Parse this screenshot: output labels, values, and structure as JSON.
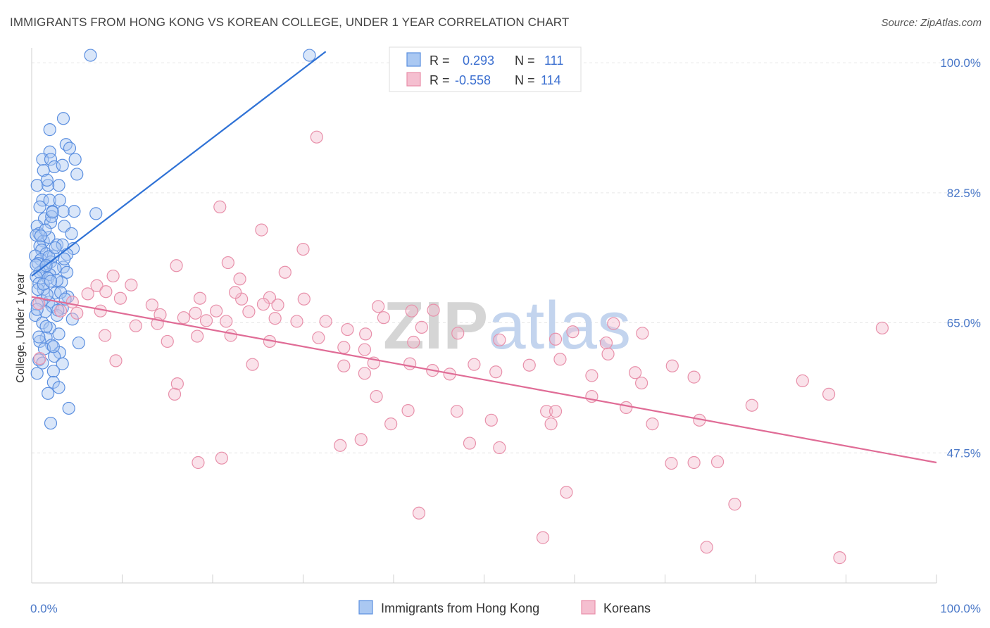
{
  "title": "IMMIGRANTS FROM HONG KONG VS KOREAN COLLEGE, UNDER 1 YEAR CORRELATION CHART",
  "source": "Source: ZipAtlas.com",
  "watermark": {
    "zip": "ZIP",
    "atlas": "atlas"
  },
  "chart_data": {
    "type": "scatter",
    "xlabel": "",
    "ylabel": "College, Under 1 year",
    "xlim": [
      0,
      100
    ],
    "ylim": [
      30,
      102
    ],
    "x_tick_labels": [
      {
        "value": 0,
        "label": "0.0%"
      },
      {
        "value": 100,
        "label": "100.0%"
      }
    ],
    "y_ticks": [
      {
        "value": 47.5,
        "label": "47.5%"
      },
      {
        "value": 65.0,
        "label": "65.0%"
      },
      {
        "value": 82.5,
        "label": "82.5%"
      },
      {
        "value": 100.0,
        "label": "100.0%"
      }
    ],
    "grid": true,
    "legend_position": "top-center",
    "series": [
      {
        "name": "Immigrants from Hong Kong",
        "color": "#5b8fe0",
        "fill": "#aac8f2",
        "line_color": "#2f72d6",
        "r_label": "R =",
        "r_value": "0.293",
        "n_label": "N =",
        "n_value": "111",
        "trend": {
          "x0": 0,
          "y0": 71.3,
          "x1": 32.5,
          "y1": 101.5
        },
        "points": [
          [
            6.5,
            101
          ],
          [
            30.7,
            101
          ],
          [
            3.5,
            92.5
          ],
          [
            2,
            91
          ],
          [
            3.8,
            89
          ],
          [
            2,
            88
          ],
          [
            4.2,
            88.5
          ],
          [
            1.2,
            87
          ],
          [
            2.1,
            87
          ],
          [
            4.8,
            87
          ],
          [
            2.5,
            86
          ],
          [
            1.3,
            85.5
          ],
          [
            5,
            85
          ],
          [
            0.6,
            83.5
          ],
          [
            1.8,
            83.5
          ],
          [
            3,
            83.5
          ],
          [
            1.2,
            81.5
          ],
          [
            2,
            81.5
          ],
          [
            3.1,
            81.5
          ],
          [
            2.3,
            80
          ],
          [
            3.5,
            80
          ],
          [
            4.7,
            80
          ],
          [
            7.1,
            79.7
          ],
          [
            1.4,
            79
          ],
          [
            2.1,
            78.5
          ],
          [
            0.6,
            78
          ],
          [
            3.6,
            78
          ],
          [
            0.8,
            77
          ],
          [
            4.4,
            77
          ],
          [
            0.5,
            76.8
          ],
          [
            1.3,
            76
          ],
          [
            1.9,
            76.5
          ],
          [
            2.8,
            75.5
          ],
          [
            0.9,
            75.3
          ],
          [
            3.4,
            75.5
          ],
          [
            4.6,
            75
          ],
          [
            1.1,
            74.8
          ],
          [
            1.6,
            74.3
          ],
          [
            2.4,
            74
          ],
          [
            3.9,
            74.2
          ],
          [
            0.4,
            74
          ],
          [
            1,
            73.5
          ],
          [
            2.1,
            73.2
          ],
          [
            0.7,
            73
          ],
          [
            1.5,
            72.5
          ],
          [
            3.5,
            72.5
          ],
          [
            2.6,
            72.3
          ],
          [
            1.2,
            72
          ],
          [
            0.9,
            71.8
          ],
          [
            2,
            71.5
          ],
          [
            0.5,
            71.2
          ],
          [
            1.8,
            71
          ],
          [
            3.3,
            70.5
          ],
          [
            0.8,
            70.3
          ],
          [
            1.3,
            69.5
          ],
          [
            2.6,
            69
          ],
          [
            4,
            68.5
          ],
          [
            1.1,
            68
          ],
          [
            1.9,
            67.8
          ],
          [
            0.6,
            67.5
          ],
          [
            2.3,
            67.2
          ],
          [
            3.4,
            67
          ],
          [
            1.5,
            66.5
          ],
          [
            0.4,
            66
          ],
          [
            2.8,
            66
          ],
          [
            4.5,
            65.5
          ],
          [
            1.2,
            65
          ],
          [
            2,
            64.3
          ],
          [
            3,
            63.5
          ],
          [
            1.6,
            63
          ],
          [
            0.9,
            62.5
          ],
          [
            2.2,
            62
          ],
          [
            5.2,
            62.3
          ],
          [
            1.4,
            61.5
          ],
          [
            3.1,
            61
          ],
          [
            2.5,
            60.5
          ],
          [
            0.8,
            60
          ],
          [
            3.4,
            59.5
          ],
          [
            2.4,
            58.5
          ],
          [
            0.6,
            58.2
          ],
          [
            2.4,
            57
          ],
          [
            3,
            56.3
          ],
          [
            1.8,
            55.5
          ],
          [
            4.1,
            53.5
          ],
          [
            2.1,
            51.5
          ],
          [
            1.7,
            68.8
          ],
          [
            0.7,
            69.5
          ],
          [
            2.8,
            70.7
          ],
          [
            3.6,
            73.6
          ],
          [
            1.5,
            77.5
          ],
          [
            2.2,
            79.3
          ],
          [
            0.9,
            80.6
          ],
          [
            1.7,
            84.2
          ],
          [
            3.4,
            86.2
          ],
          [
            0.5,
            72.8
          ],
          [
            1.9,
            73.9
          ],
          [
            2.6,
            75.1
          ],
          [
            1.3,
            70.2
          ],
          [
            3.2,
            69.1
          ],
          [
            2.9,
            66.7
          ],
          [
            1.6,
            64.5
          ],
          [
            0.8,
            63.1
          ],
          [
            2.4,
            61.8
          ],
          [
            1.2,
            59.6
          ],
          [
            3.7,
            68.2
          ],
          [
            0.6,
            66.8
          ],
          [
            2.1,
            70.6
          ],
          [
            1,
            76.7
          ],
          [
            1.6,
            72.7
          ],
          [
            3.9,
            71.8
          ],
          [
            2.3,
            79.9
          ]
        ]
      },
      {
        "name": "Koreans",
        "color": "#e890aa",
        "fill": "#f5bfd0",
        "line_color": "#e06c96",
        "r_label": "R =",
        "r_value": "-0.558",
        "n_label": "N =",
        "n_value": "114",
        "trend": {
          "x0": 0,
          "y0": 68.5,
          "x1": 100,
          "y1": 46.2
        },
        "points": [
          [
            31.5,
            90
          ],
          [
            20.8,
            80.6
          ],
          [
            25.4,
            77.5
          ],
          [
            21.7,
            73.1
          ],
          [
            30,
            74.9
          ],
          [
            28,
            71.8
          ],
          [
            16,
            72.7
          ],
          [
            23,
            70.9
          ],
          [
            9,
            71.3
          ],
          [
            11,
            70.1
          ],
          [
            7.2,
            70
          ],
          [
            8.2,
            69.2
          ],
          [
            6.2,
            68.9
          ],
          [
            4.5,
            67.8
          ],
          [
            7.6,
            66.6
          ],
          [
            5,
            66.3
          ],
          [
            3.2,
            66.6
          ],
          [
            9.8,
            68.3
          ],
          [
            13.3,
            67.4
          ],
          [
            18.6,
            68.3
          ],
          [
            23.2,
            68.2
          ],
          [
            22.5,
            69.1
          ],
          [
            26.3,
            68.4
          ],
          [
            30.1,
            68.2
          ],
          [
            25.6,
            67.5
          ],
          [
            27.2,
            67.4
          ],
          [
            14.2,
            66.1
          ],
          [
            16.8,
            65.7
          ],
          [
            18.1,
            66.3
          ],
          [
            19.3,
            65.3
          ],
          [
            20.4,
            66.6
          ],
          [
            21.5,
            65.2
          ],
          [
            24,
            66.5
          ],
          [
            26.9,
            65.6
          ],
          [
            29.3,
            65.2
          ],
          [
            32.5,
            65.2
          ],
          [
            34.9,
            64.1
          ],
          [
            36.9,
            63.5
          ],
          [
            38.3,
            67.2
          ],
          [
            38.9,
            65.7
          ],
          [
            42,
            66.6
          ],
          [
            43.1,
            64.4
          ],
          [
            44.4,
            66.7
          ],
          [
            11.5,
            64.6
          ],
          [
            13.9,
            64.9
          ],
          [
            15,
            62.5
          ],
          [
            18.3,
            63.2
          ],
          [
            22,
            63.3
          ],
          [
            26.3,
            62.5
          ],
          [
            31.7,
            63
          ],
          [
            34.5,
            61.7
          ],
          [
            36.8,
            61.4
          ],
          [
            42.2,
            62.4
          ],
          [
            47.1,
            63.6
          ],
          [
            51.7,
            62.7
          ],
          [
            57.9,
            62.8
          ],
          [
            59.8,
            63.8
          ],
          [
            64.3,
            64.9
          ],
          [
            63.5,
            62.3
          ],
          [
            67.5,
            63.6
          ],
          [
            8.1,
            63.3
          ],
          [
            9.3,
            59.9
          ],
          [
            16.1,
            56.8
          ],
          [
            15.8,
            55.4
          ],
          [
            24.4,
            59.4
          ],
          [
            34.5,
            59.2
          ],
          [
            36.8,
            58.2
          ],
          [
            37.8,
            59.6
          ],
          [
            41.8,
            59.5
          ],
          [
            44.3,
            58.6
          ],
          [
            46.2,
            58.1
          ],
          [
            48.9,
            59.4
          ],
          [
            51.3,
            58.4
          ],
          [
            55,
            59.3
          ],
          [
            58.4,
            60.1
          ],
          [
            61.9,
            57.9
          ],
          [
            63.7,
            60.8
          ],
          [
            66.7,
            58.3
          ],
          [
            70.8,
            59.2
          ],
          [
            73.2,
            57.7
          ],
          [
            56.9,
            53.1
          ],
          [
            57.4,
            51.4
          ],
          [
            48.4,
            48.8
          ],
          [
            51.7,
            48.2
          ],
          [
            47,
            53.1
          ],
          [
            41.6,
            53.2
          ],
          [
            39.7,
            51.4
          ],
          [
            36.4,
            49.3
          ],
          [
            34.1,
            48.5
          ],
          [
            38.1,
            55.1
          ],
          [
            50.8,
            51.9
          ],
          [
            57.9,
            53.1
          ],
          [
            61.9,
            55.1
          ],
          [
            65.7,
            53.6
          ],
          [
            68.6,
            51.4
          ],
          [
            70.7,
            46.1
          ],
          [
            73.2,
            46.2
          ],
          [
            75.8,
            46.3
          ],
          [
            79.6,
            53.9
          ],
          [
            85.2,
            57.2
          ],
          [
            88.1,
            55.4
          ],
          [
            94,
            64.3
          ],
          [
            59.1,
            42.2
          ],
          [
            56.5,
            36.1
          ],
          [
            74.6,
            34.8
          ],
          [
            77.7,
            40.6
          ],
          [
            89.3,
            33.4
          ],
          [
            42.8,
            39.4
          ],
          [
            18.4,
            46.2
          ],
          [
            21,
            46.8
          ],
          [
            73.8,
            51.9
          ],
          [
            67.4,
            56.9
          ],
          [
            0.8,
            67.6
          ],
          [
            0.9,
            60.2
          ]
        ]
      }
    ]
  }
}
